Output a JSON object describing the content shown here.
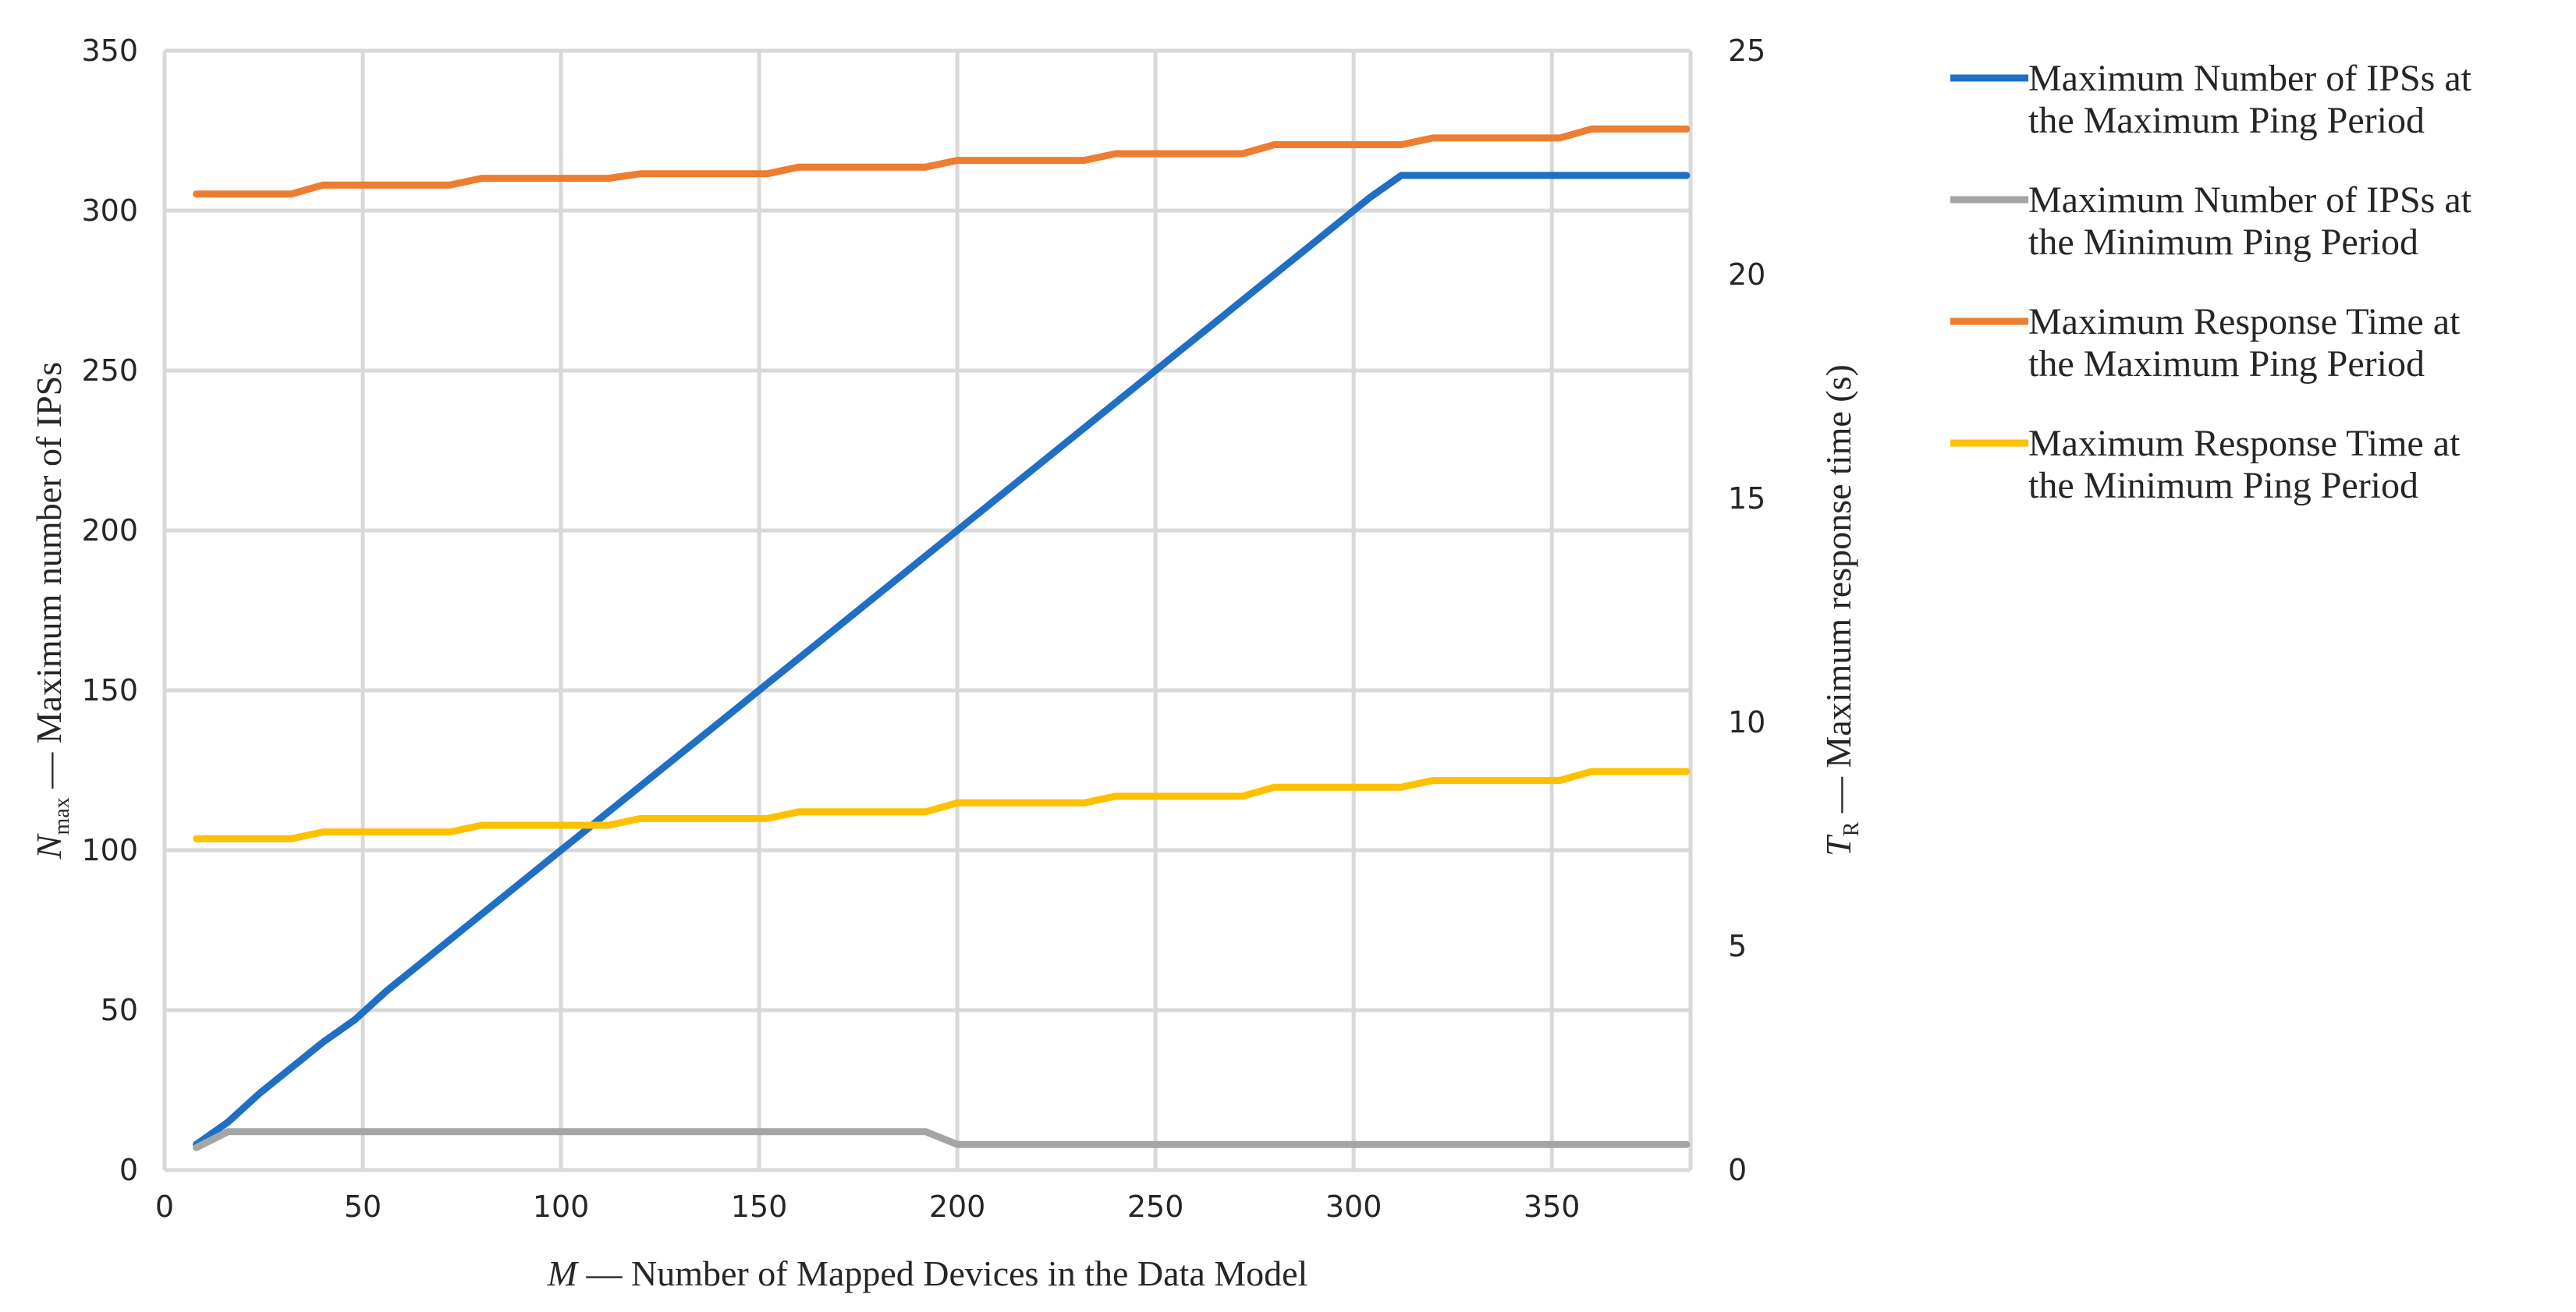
{
  "chart_data": {
    "type": "line",
    "xlabel": {
      "italic": "M",
      "rest": " — Number of Mapped Devices in the Data Model"
    },
    "ylabel_left": {
      "italic": "N",
      "sub": "max",
      "rest": " — Maximum number of IPSs"
    },
    "ylabel_right": {
      "italic": "T",
      "sub": "R",
      "rest": " — Maximum response time (s)"
    },
    "xlim": [
      0,
      385
    ],
    "ylim_left": [
      0,
      350
    ],
    "ylim_right": [
      0,
      25
    ],
    "x_ticks": [
      0,
      50,
      100,
      150,
      200,
      250,
      300,
      350
    ],
    "y_ticks_left": [
      0,
      50,
      100,
      150,
      200,
      250,
      300,
      350
    ],
    "y_ticks_right": [
      0,
      5,
      10,
      15,
      20,
      25
    ],
    "grid": true,
    "legend_position": "right",
    "x": [
      8,
      16,
      24,
      32,
      40,
      48,
      56,
      64,
      72,
      80,
      88,
      96,
      104,
      112,
      120,
      128,
      136,
      144,
      152,
      160,
      168,
      176,
      184,
      192,
      200,
      208,
      216,
      224,
      232,
      240,
      248,
      256,
      264,
      272,
      280,
      288,
      296,
      304,
      312,
      320,
      328,
      336,
      344,
      352,
      360,
      368,
      376,
      384
    ],
    "series": [
      {
        "name": "Maximum Number of IPSs at the Maximum Ping Period",
        "legend_lines": [
          "Maximum Number of IPSs at",
          "the Maximum Ping Period"
        ],
        "axis": "left",
        "color": "#1f6fc5",
        "values": [
          8,
          15,
          24,
          32,
          40,
          47,
          56,
          64,
          72,
          80,
          88,
          96,
          104,
          112,
          120,
          128,
          136,
          144,
          152,
          160,
          168,
          176,
          184,
          192,
          200,
          208,
          216,
          224,
          232,
          240,
          248,
          256,
          264,
          272,
          280,
          288,
          296,
          304,
          311,
          311,
          311,
          311,
          311,
          311,
          311,
          311,
          311,
          311
        ]
      },
      {
        "name": "Maximum Number of IPSs at the Minimum Ping Period",
        "legend_lines": [
          "Maximum Number of IPSs at",
          "the Minimum Ping Period"
        ],
        "axis": "left",
        "color": "#a5a5a5",
        "values": [
          7,
          12,
          12,
          12,
          12,
          12,
          12,
          12,
          12,
          12,
          12,
          12,
          12,
          12,
          12,
          12,
          12,
          12,
          12,
          12,
          12,
          12,
          12,
          12,
          8,
          8,
          8,
          8,
          8,
          8,
          8,
          8,
          8,
          8,
          8,
          8,
          8,
          8,
          8,
          8,
          8,
          8,
          8,
          8,
          8,
          8,
          8,
          8
        ]
      },
      {
        "name": "Maximum Response Time at the Maximum Ping Period",
        "legend_lines": [
          "Maximum Response Time at",
          "the Maximum Ping Period"
        ],
        "axis": "right",
        "color": "#ed7d31",
        "values": [
          21.8,
          21.8,
          21.8,
          21.8,
          22.0,
          22.0,
          22.0,
          22.0,
          22.0,
          22.15,
          22.15,
          22.15,
          22.15,
          22.15,
          22.25,
          22.25,
          22.25,
          22.25,
          22.25,
          22.4,
          22.4,
          22.4,
          22.4,
          22.4,
          22.55,
          22.55,
          22.55,
          22.55,
          22.55,
          22.7,
          22.7,
          22.7,
          22.7,
          22.7,
          22.9,
          22.9,
          22.9,
          22.9,
          22.9,
          23.05,
          23.05,
          23.05,
          23.05,
          23.05,
          23.25,
          23.25,
          23.25,
          23.25
        ]
      },
      {
        "name": "Maximum Response Time at the Minimum Ping Period",
        "legend_lines": [
          "Maximum Response Time at",
          "the Minimum Ping Period"
        ],
        "axis": "right",
        "color": "#ffc000",
        "values": [
          7.4,
          7.4,
          7.4,
          7.4,
          7.55,
          7.55,
          7.55,
          7.55,
          7.55,
          7.7,
          7.7,
          7.7,
          7.7,
          7.7,
          7.85,
          7.85,
          7.85,
          7.85,
          7.85,
          8.0,
          8.0,
          8.0,
          8.0,
          8.0,
          8.2,
          8.2,
          8.2,
          8.2,
          8.2,
          8.35,
          8.35,
          8.35,
          8.35,
          8.35,
          8.55,
          8.55,
          8.55,
          8.55,
          8.55,
          8.7,
          8.7,
          8.7,
          8.7,
          8.7,
          8.9,
          8.9,
          8.9,
          8.9
        ]
      }
    ]
  }
}
